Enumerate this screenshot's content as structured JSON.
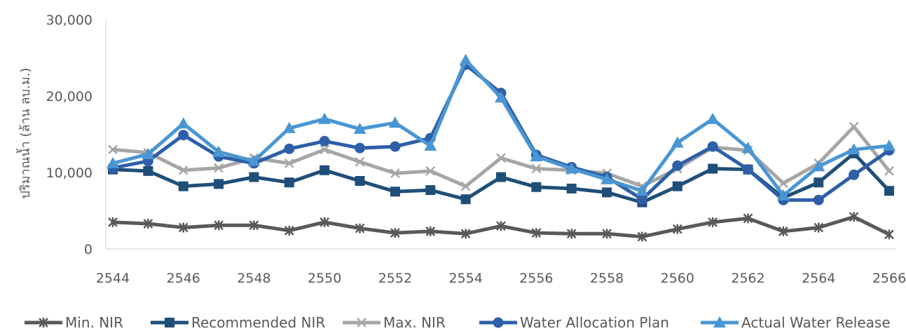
{
  "chart_data": {
    "type": "line",
    "title": "",
    "xlabel": "",
    "ylabel": "ปริมาณน้ำ (ล้าน ลบ.ม.)",
    "ylim": [
      0,
      30000
    ],
    "yticks": [
      "0",
      "10,000",
      "20,000",
      "30,000"
    ],
    "ytick_values": [
      0,
      10000,
      20000,
      30000
    ],
    "x": [
      2544,
      2545,
      2546,
      2547,
      2548,
      2549,
      2550,
      2551,
      2552,
      2553,
      2554,
      2555,
      2556,
      2557,
      2558,
      2559,
      2560,
      2561,
      2562,
      2563,
      2564,
      2565,
      2566
    ],
    "xticks": [
      "2544",
      "2546",
      "2548",
      "2550",
      "2552",
      "2554",
      "2556",
      "2558",
      "2560",
      "2562",
      "2564",
      "2566"
    ],
    "grid": false,
    "legend_position": "bottom",
    "series": [
      {
        "name": "Min. NIR",
        "color": "#595959",
        "marker": "star",
        "values": [
          3500,
          3300,
          2800,
          3100,
          3100,
          2400,
          3500,
          2700,
          2100,
          2300,
          2000,
          3000,
          2100,
          2000,
          2000,
          1600,
          2600,
          3500,
          4000,
          2300,
          2800,
          4200,
          1900
        ]
      },
      {
        "name": "Recommended NIR",
        "color": "#1F4E79",
        "marker": "square",
        "values": [
          10400,
          10200,
          8200,
          8500,
          9400,
          8700,
          10300,
          8900,
          7500,
          7700,
          6500,
          9400,
          8100,
          7900,
          7400,
          6100,
          8200,
          10500,
          10400,
          6700,
          8700,
          12500,
          7600
        ]
      },
      {
        "name": "Max. NIR",
        "color": "#A6A6A6",
        "marker": "x",
        "values": [
          13000,
          12600,
          10300,
          10600,
          11900,
          11200,
          13000,
          11400,
          9900,
          10200,
          8200,
          11900,
          10500,
          10300,
          9900,
          8200,
          10500,
          13300,
          12900,
          8600,
          11200,
          16000,
          10200
        ]
      },
      {
        "name": "Water Allocation Plan",
        "color": "#2E5FA8",
        "marker": "circle",
        "values": [
          10600,
          11500,
          14900,
          12100,
          11200,
          13100,
          14100,
          13200,
          13400,
          14500,
          24100,
          20400,
          12300,
          10700,
          9400,
          6500,
          10900,
          13400,
          10400,
          6400,
          6400,
          9700,
          12900
        ]
      },
      {
        "name": "Actual Water Release",
        "color": "#4A96D2",
        "marker": "triangle",
        "values": [
          11200,
          12400,
          16400,
          12700,
          11500,
          15800,
          17000,
          15700,
          16500,
          13500,
          24700,
          19800,
          12100,
          10500,
          9100,
          7600,
          13900,
          17000,
          13200,
          7000,
          10800,
          13000,
          13500
        ]
      }
    ]
  }
}
